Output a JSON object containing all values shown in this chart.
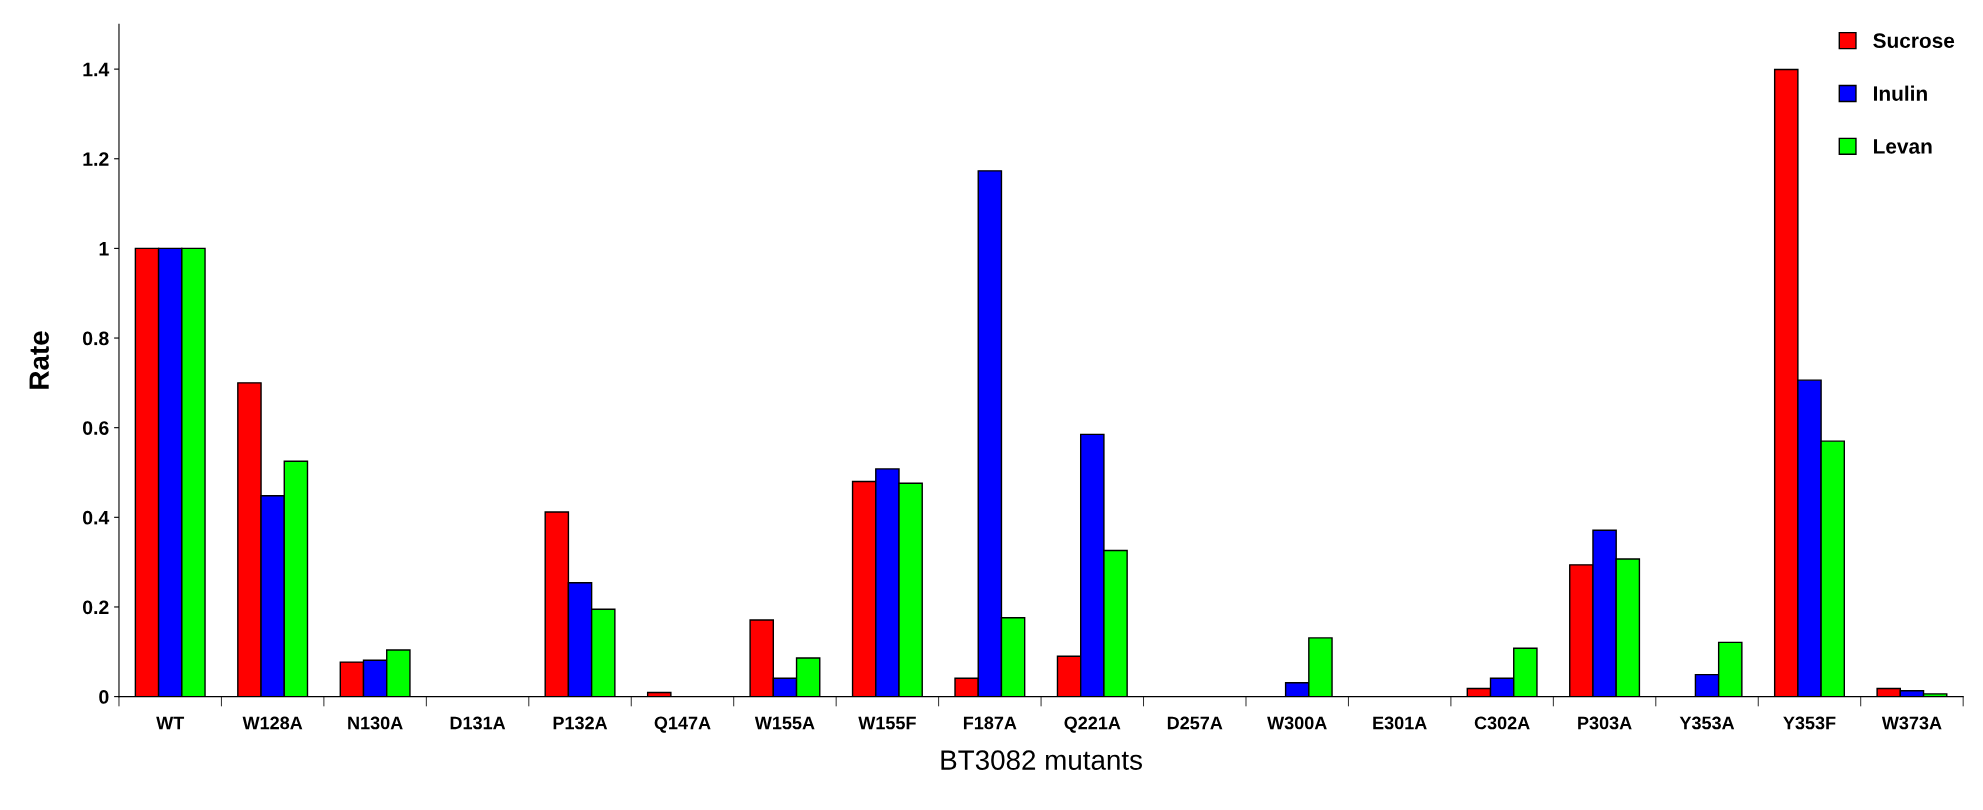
{
  "chart_data": {
    "type": "bar",
    "xlabel": "BT3082 mutants",
    "ylabel": "Rate",
    "categories": [
      "WT",
      "W128A",
      "N130A",
      "D131A",
      "P132A",
      "Q147A",
      "W155A",
      "W155F",
      "F187A",
      "Q221A",
      "D257A",
      "W300A",
      "E301A",
      "C302A",
      "P303A",
      "Y353A",
      "Y353F",
      "W373A"
    ],
    "series": [
      {
        "name": "Sucrose",
        "color": "#ff0000",
        "values": [
          1,
          0.7,
          0.077,
          0,
          0.412,
          0.009,
          0.171,
          0.48,
          0.041,
          0.09,
          0,
          0,
          0,
          0.018,
          0.294,
          0,
          1.399,
          0.018
        ]
      },
      {
        "name": "Inulin",
        "color": "#0000ff",
        "values": [
          1,
          0.448,
          0.081,
          0,
          0.254,
          0,
          0.041,
          0.508,
          1.173,
          0.585,
          0,
          0.031,
          0,
          0.041,
          0.371,
          0.049,
          0.706,
          0.013
        ]
      },
      {
        "name": "Levan",
        "color": "#00ff00",
        "values": [
          1,
          0.525,
          0.104,
          0,
          0.195,
          0,
          0.086,
          0.476,
          0.176,
          0.326,
          0,
          0.131,
          0,
          0.108,
          0.307,
          0.121,
          0.57,
          0.006
        ]
      }
    ],
    "ylim": [
      0,
      1.5
    ],
    "yticks": [
      0,
      0.2,
      0.4,
      0.6,
      0.8,
      1,
      1.2,
      1.4
    ],
    "grid": false,
    "legend": "top right"
  }
}
